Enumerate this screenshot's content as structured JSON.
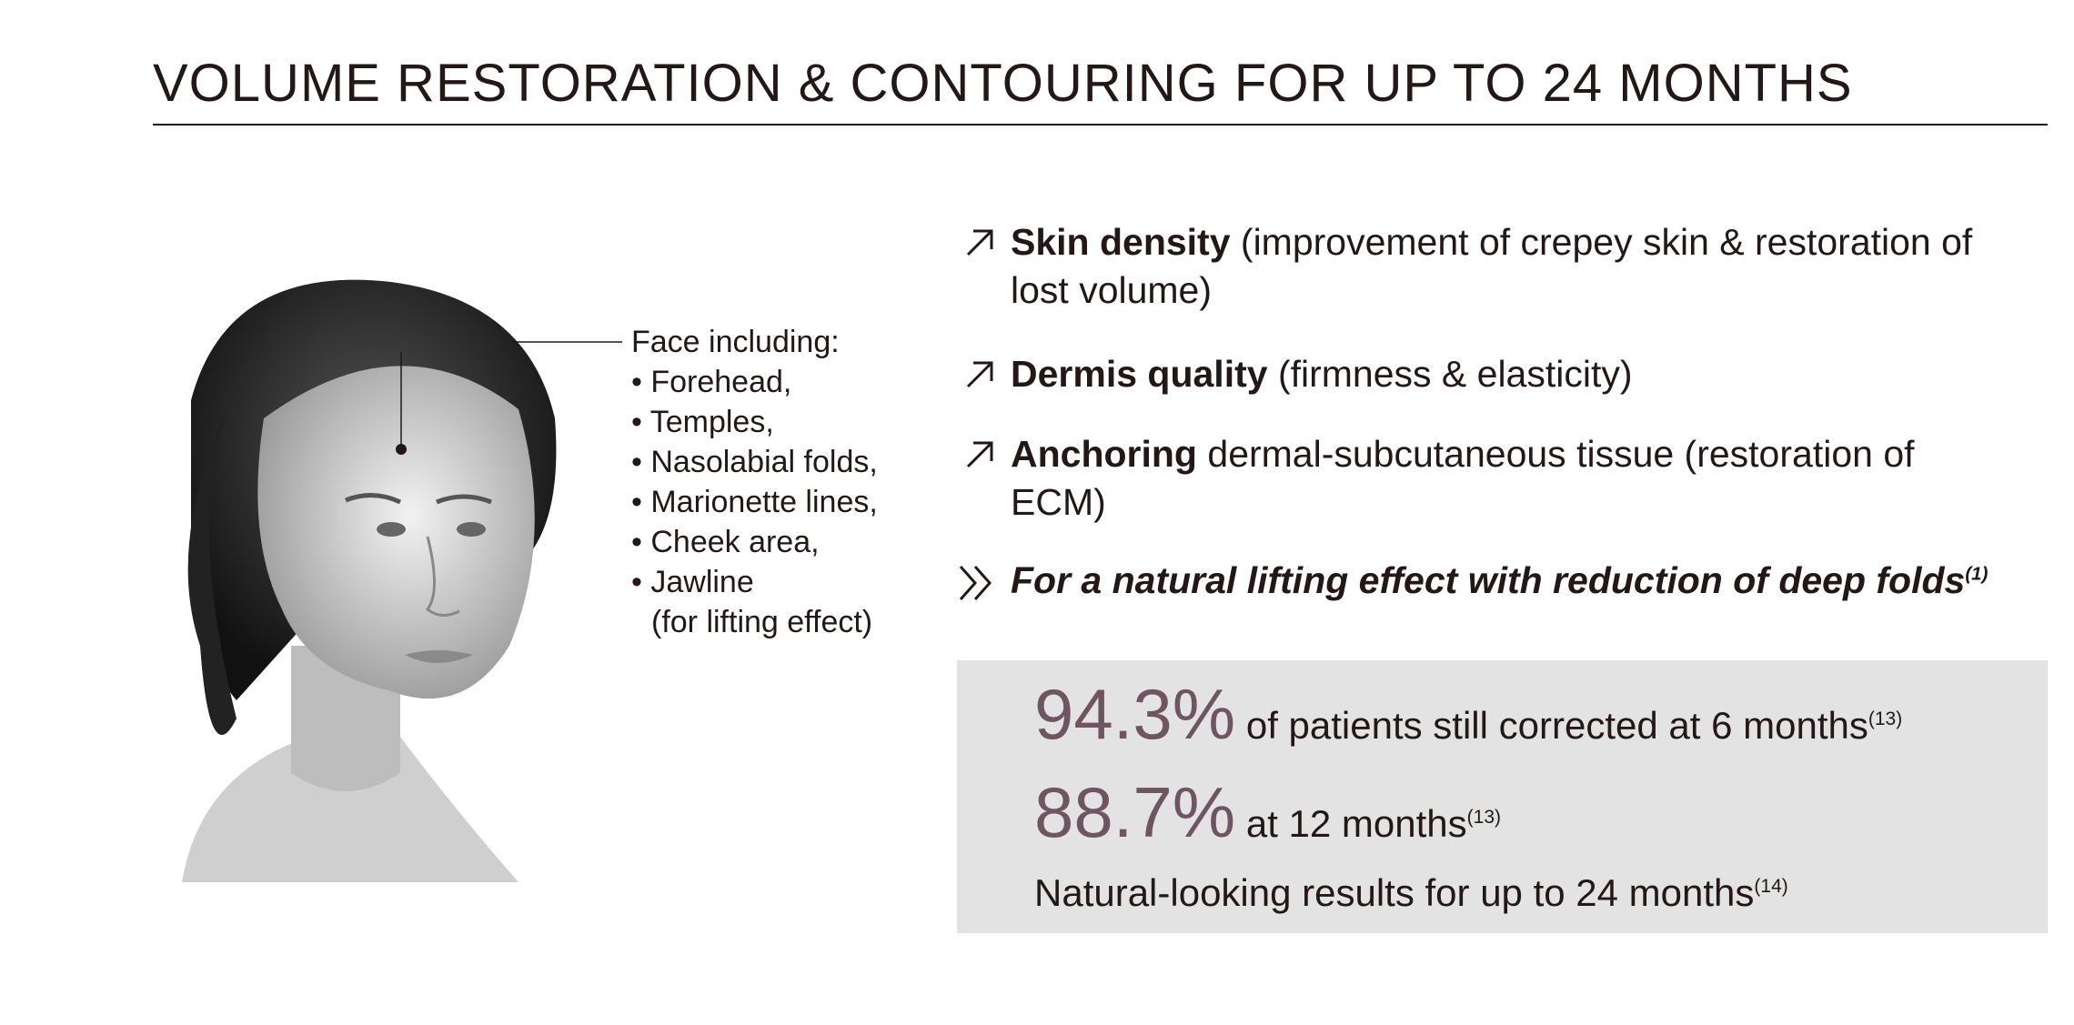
{
  "header": {
    "title": "VOLUME RESTORATION & CONTOURING FOR UP TO 24 MONTHS"
  },
  "face_labels": {
    "heading": "Face including:",
    "items": [
      "• Forehead,",
      "• Temples,",
      "• Nasolabial folds,",
      "• Marionette lines,",
      "• Cheek area,",
      "• Jawline",
      "(for lifting effect)"
    ]
  },
  "benefits": [
    {
      "bold": "Skin density",
      "text": "(improvement of crepey skin & restoration of lost volume)"
    },
    {
      "bold": "Dermis quality",
      "text": "(firmness & elasticity)"
    },
    {
      "bold": "Anchoring",
      "text": "dermal-subcutaneous tissue (restoration of ECM)"
    }
  ],
  "conclusion": {
    "text": "For a natural lifting effect with reduction of deep folds",
    "ref": "(1)"
  },
  "stats": [
    {
      "value": "94.3%",
      "text": "of patients still corrected at 6 months",
      "ref": "(13)"
    },
    {
      "value": "88.7%",
      "text": "at 12 months",
      "ref": "(13)"
    },
    {
      "text": "Natural-looking results for up to 24 months",
      "ref": "(14)"
    }
  ]
}
